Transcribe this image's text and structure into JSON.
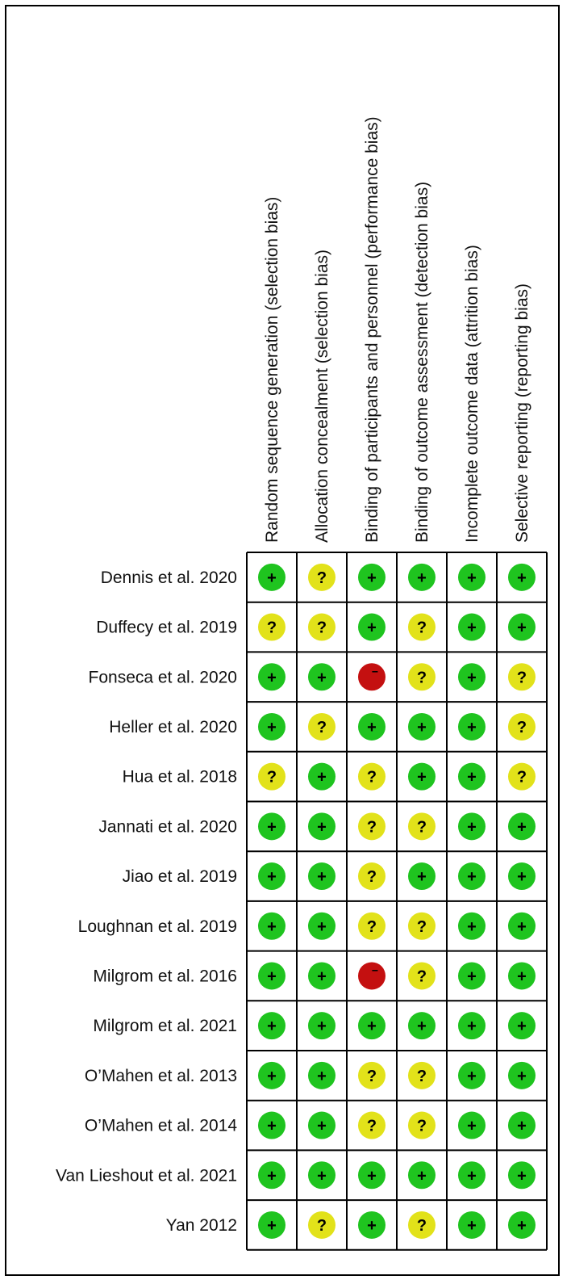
{
  "chart_data": {
    "type": "table",
    "title": "",
    "columns": [
      "Random sequence generation (selection bias)",
      "Allocation concealment (selection bias)",
      "Binding of participants and personnel (performance bias)",
      "Binding of outcome assessment (detection bias)",
      "Incomplete outcome data (attrition bias)",
      "Selective reporting (reporting bias)"
    ],
    "legend": {
      "low": {
        "symbol": "+",
        "color": "#1fc41f"
      },
      "unclear": {
        "symbol": "?",
        "color": "#e2e21a"
      },
      "high": {
        "symbol": "−",
        "color": "#c41010"
      }
    },
    "rows": [
      {
        "study": "Dennis et al. 2020",
        "ratings": [
          "low",
          "unclear",
          "low",
          "low",
          "low",
          "low"
        ]
      },
      {
        "study": "Duffecy et al. 2019",
        "ratings": [
          "unclear",
          "unclear",
          "low",
          "unclear",
          "low",
          "low"
        ]
      },
      {
        "study": "Fonseca et al. 2020",
        "ratings": [
          "low",
          "low",
          "high",
          "unclear",
          "low",
          "unclear"
        ]
      },
      {
        "study": "Heller et al. 2020",
        "ratings": [
          "low",
          "unclear",
          "low",
          "low",
          "low",
          "unclear"
        ]
      },
      {
        "study": "Hua et al. 2018",
        "ratings": [
          "unclear",
          "low",
          "unclear",
          "low",
          "low",
          "unclear"
        ]
      },
      {
        "study": "Jannati et al. 2020",
        "ratings": [
          "low",
          "low",
          "unclear",
          "unclear",
          "low",
          "low"
        ]
      },
      {
        "study": "Jiao et al. 2019",
        "ratings": [
          "low",
          "low",
          "unclear",
          "low",
          "low",
          "low"
        ]
      },
      {
        "study": "Loughnan et al. 2019",
        "ratings": [
          "low",
          "low",
          "unclear",
          "unclear",
          "low",
          "low"
        ]
      },
      {
        "study": "Milgrom et al. 2016",
        "ratings": [
          "low",
          "low",
          "high",
          "unclear",
          "low",
          "low"
        ]
      },
      {
        "study": "Milgrom et al. 2021",
        "ratings": [
          "low",
          "low",
          "low",
          "low",
          "low",
          "low"
        ]
      },
      {
        "study": "O’Mahen et al. 2013",
        "ratings": [
          "low",
          "low",
          "unclear",
          "unclear",
          "low",
          "low"
        ]
      },
      {
        "study": "O’Mahen et al. 2014",
        "ratings": [
          "low",
          "low",
          "unclear",
          "unclear",
          "low",
          "low"
        ]
      },
      {
        "study": "Van Lieshout et al. 2021",
        "ratings": [
          "low",
          "low",
          "low",
          "low",
          "low",
          "low"
        ]
      },
      {
        "study": "Yan 2012",
        "ratings": [
          "low",
          "unclear",
          "low",
          "unclear",
          "low",
          "low"
        ]
      }
    ]
  }
}
